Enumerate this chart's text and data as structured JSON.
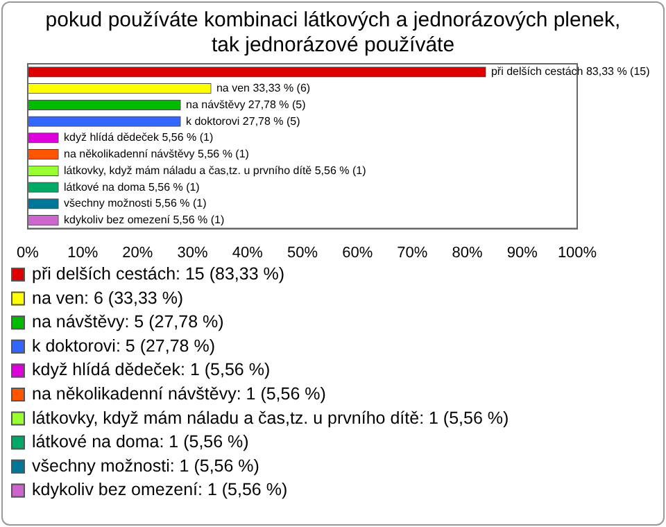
{
  "chart_data": {
    "type": "bar",
    "orientation": "horizontal",
    "title": "pokud používáte kombinaci látkových a jednorázových plenek, tak jednorázové používáte",
    "categories": [
      null,
      null,
      null,
      null,
      null,
      null,
      null,
      null,
      null,
      null
    ],
    "series": [
      {
        "name": "při delších cestách: 15 (83,33 %)",
        "color": "#dd0000",
        "values": [
          83.33,
          null,
          null,
          null,
          null,
          null,
          null,
          null,
          null,
          null
        ],
        "value_labels": [
          "při delších cestách 83,33 % (15)",
          null,
          null,
          null,
          null,
          null,
          null,
          null,
          null,
          null
        ]
      },
      {
        "name": "na ven: 6 (33,33 %)",
        "color": "#ffff00",
        "values": [
          null,
          33.33,
          null,
          null,
          null,
          null,
          null,
          null,
          null,
          null
        ],
        "value_labels": [
          null,
          "na ven 33,33 % (6)",
          null,
          null,
          null,
          null,
          null,
          null,
          null,
          null
        ]
      },
      {
        "name": "na návštěvy: 5 (27,78 %)",
        "color": "#00bb00",
        "values": [
          null,
          null,
          27.78,
          null,
          null,
          null,
          null,
          null,
          null,
          null
        ],
        "value_labels": [
          null,
          null,
          "na návštěvy 27,78 % (5)",
          null,
          null,
          null,
          null,
          null,
          null,
          null
        ]
      },
      {
        "name": "k doktorovi: 5 (27,78 %)",
        "color": "#3366ff",
        "values": [
          null,
          null,
          null,
          27.78,
          null,
          null,
          null,
          null,
          null,
          null
        ],
        "value_labels": [
          null,
          null,
          null,
          "k doktorovi 27,78 % (5)",
          null,
          null,
          null,
          null,
          null,
          null
        ]
      },
      {
        "name": "když hlídá dědeček: 1 (5,56 %)",
        "color": "#dd00dd",
        "values": [
          null,
          null,
          null,
          null,
          5.56,
          null,
          null,
          null,
          null,
          null
        ],
        "value_labels": [
          null,
          null,
          null,
          null,
          "když hlídá dědeček 5,56 % (1)",
          null,
          null,
          null,
          null,
          null
        ]
      },
      {
        "name": "na několikadenní návštěvy: 1 (5,56 %)",
        "color": "#ff5500",
        "values": [
          null,
          null,
          null,
          null,
          null,
          5.56,
          null,
          null,
          null,
          null
        ],
        "value_labels": [
          null,
          null,
          null,
          null,
          null,
          "na několikadenní návštěvy 5,56 % (1)",
          null,
          null,
          null,
          null
        ]
      },
      {
        "name": "látkovky, když mám náladu a čas,tz. u prvního dítě: 1 (5,56 %)",
        "color": "#99ff33",
        "values": [
          null,
          null,
          null,
          null,
          null,
          null,
          5.56,
          null,
          null,
          null
        ],
        "value_labels": [
          null,
          null,
          null,
          null,
          null,
          null,
          "látkovky, když mám náladu a čas,tz. u prvního dítě 5,56 % (1)",
          null,
          null,
          null
        ]
      },
      {
        "name": "látkové na doma: 1 (5,56 %)",
        "color": "#00aa66",
        "values": [
          null,
          null,
          null,
          null,
          null,
          null,
          null,
          5.56,
          null,
          null
        ],
        "value_labels": [
          null,
          null,
          null,
          null,
          null,
          null,
          null,
          "látkové na doma 5,56 % (1)",
          null,
          null
        ]
      },
      {
        "name": "všechny možnosti: 1 (5,56 %)",
        "color": "#007799",
        "values": [
          null,
          null,
          null,
          null,
          null,
          null,
          null,
          null,
          5.56,
          null
        ],
        "value_labels": [
          null,
          null,
          null,
          null,
          null,
          null,
          null,
          null,
          "všechny možnosti 5,56 % (1)",
          null
        ]
      },
      {
        "name": "kdykoliv bez omezení: 1 (5,56 %)",
        "color": "#cc66cc",
        "values": [
          null,
          null,
          null,
          null,
          null,
          null,
          null,
          null,
          null,
          5.56
        ],
        "value_labels": [
          null,
          null,
          null,
          null,
          null,
          null,
          null,
          null,
          null,
          "kdykoliv bez omezení 5,56 % (1)"
        ]
      }
    ],
    "xlim": [
      0,
      100
    ],
    "xticks": [
      {
        "value": 0,
        "label": "0%"
      },
      {
        "value": 10,
        "label": "10%"
      },
      {
        "value": 20,
        "label": "20%"
      },
      {
        "value": 30,
        "label": "30%"
      },
      {
        "value": 40,
        "label": "40%"
      },
      {
        "value": 50,
        "label": "50%"
      },
      {
        "value": 60,
        "label": "60%"
      },
      {
        "value": 70,
        "label": "70%"
      },
      {
        "value": 80,
        "label": "80%"
      },
      {
        "value": 90,
        "label": "90%"
      },
      {
        "value": 100,
        "label": "100%"
      }
    ],
    "tick_labels": "x",
    "grid": false,
    "legend": "bottom",
    "stacked": true
  }
}
